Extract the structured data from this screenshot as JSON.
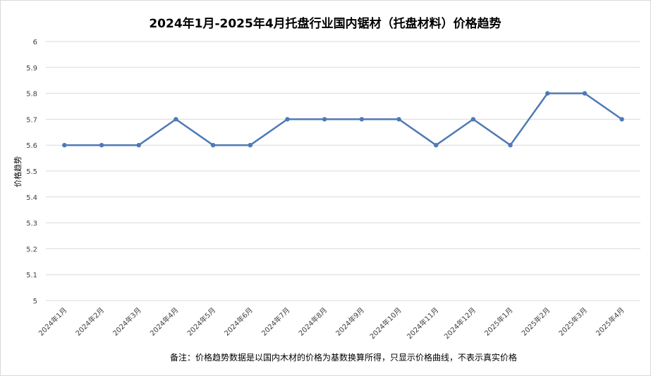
{
  "chart_data": {
    "type": "line",
    "title": "2024年1月-2025年4月托盘行业国内锯材（托盘材料）价格趋势",
    "xlabel": "",
    "ylabel": "价格趋势",
    "ylim": [
      5,
      6
    ],
    "yticks": [
      "5",
      "5.1",
      "5.2",
      "5.3",
      "5.4",
      "5.5",
      "5.6",
      "5.7",
      "5.8",
      "5.9",
      "6"
    ],
    "grid": true,
    "legend": "none",
    "categories": [
      "2024年1月",
      "2024年2月",
      "2024年3月",
      "2024年4月",
      "2024年5月",
      "2024年6月",
      "2024年7月",
      "2024年8月",
      "2024年9月",
      "2024年10月",
      "2024年11月",
      "2024年12月",
      "2025年1月",
      "2025年2月",
      "2025年3月",
      "2025年4月"
    ],
    "series": [
      {
        "values": [
          5.6,
          5.6,
          5.6,
          5.7,
          5.6,
          5.6,
          5.7,
          5.7,
          5.7,
          5.7,
          5.6,
          5.7,
          5.6,
          5.8,
          5.8,
          5.7
        ]
      }
    ],
    "note": "备注：价格趋势数据是以国内木材的价格为基数换算所得，只显示价格曲线，不表示真实价格",
    "colors": {
      "line": "#4e79b4",
      "grid": "#d9d9d9",
      "text": "#404040",
      "title": "#000000"
    }
  }
}
